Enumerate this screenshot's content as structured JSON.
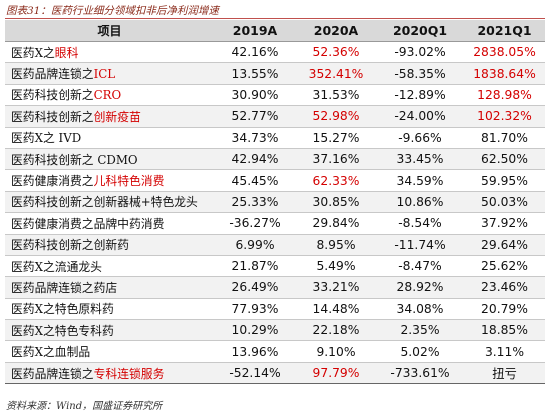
{
  "caption": "图表31：医药行业细分领域扣非后净利润增速",
  "columns": [
    "项目",
    "2019A",
    "2020A",
    "2020Q1",
    "2021Q1"
  ],
  "highlight_color": "#d40000",
  "rows": [
    {
      "prefix": "医药Ⅹ之",
      "suffix": "眼科",
      "suffix_hl": true,
      "v": [
        "42.16%",
        "52.36%",
        "-93.02%",
        "2838.05%"
      ],
      "hl": [
        false,
        true,
        false,
        true
      ]
    },
    {
      "prefix": "医药品牌连锁之",
      "suffix": "ICL",
      "suffix_hl": true,
      "v": [
        "13.55%",
        "352.41%",
        "-58.35%",
        "1838.64%"
      ],
      "hl": [
        false,
        true,
        false,
        true
      ]
    },
    {
      "prefix": "医药科技创新之",
      "suffix": "CRO",
      "suffix_hl": true,
      "v": [
        "30.90%",
        "31.53%",
        "-12.89%",
        "128.98%"
      ],
      "hl": [
        false,
        false,
        false,
        true
      ]
    },
    {
      "prefix": "医药科技创新之",
      "suffix": "创新疫苗",
      "suffix_hl": true,
      "v": [
        "52.77%",
        "52.98%",
        "-24.00%",
        "102.32%"
      ],
      "hl": [
        false,
        true,
        false,
        true
      ]
    },
    {
      "prefix": "医药Ⅹ之 IVD",
      "suffix": "",
      "suffix_hl": false,
      "v": [
        "34.73%",
        "15.27%",
        "-9.66%",
        "81.70%"
      ],
      "hl": [
        false,
        false,
        false,
        false
      ]
    },
    {
      "prefix": "医药科技创新之 CDMO",
      "suffix": "",
      "suffix_hl": false,
      "v": [
        "42.94%",
        "37.16%",
        "33.45%",
        "62.50%"
      ],
      "hl": [
        false,
        false,
        false,
        false
      ]
    },
    {
      "prefix": "医药健康消费之",
      "suffix": "儿科特色消费",
      "suffix_hl": true,
      "v": [
        "45.45%",
        "62.33%",
        "34.59%",
        "59.95%"
      ],
      "hl": [
        false,
        true,
        false,
        false
      ]
    },
    {
      "prefix": "医药科技创新之创新器械+特色龙头",
      "suffix": "",
      "suffix_hl": false,
      "v": [
        "25.33%",
        "30.85%",
        "10.86%",
        "50.03%"
      ],
      "hl": [
        false,
        false,
        false,
        false
      ]
    },
    {
      "prefix": "医药健康消费之品牌中药消费",
      "suffix": "",
      "suffix_hl": false,
      "v": [
        "-36.27%",
        "29.84%",
        "-8.54%",
        "37.92%"
      ],
      "hl": [
        false,
        false,
        false,
        false
      ]
    },
    {
      "prefix": "医药科技创新之创新药",
      "suffix": "",
      "suffix_hl": false,
      "v": [
        "6.99%",
        "8.95%",
        "-11.74%",
        "29.64%"
      ],
      "hl": [
        false,
        false,
        false,
        false
      ]
    },
    {
      "prefix": "医药Ⅹ之流通龙头",
      "suffix": "",
      "suffix_hl": false,
      "v": [
        "21.87%",
        "5.49%",
        "-8.47%",
        "25.62%"
      ],
      "hl": [
        false,
        false,
        false,
        false
      ]
    },
    {
      "prefix": "医药品牌连锁之药店",
      "suffix": "",
      "suffix_hl": false,
      "v": [
        "26.49%",
        "33.21%",
        "28.92%",
        "23.46%"
      ],
      "hl": [
        false,
        false,
        false,
        false
      ]
    },
    {
      "prefix": "医药Ⅹ之特色原料药",
      "suffix": "",
      "suffix_hl": false,
      "v": [
        "77.93%",
        "14.48%",
        "34.08%",
        "20.79%"
      ],
      "hl": [
        false,
        false,
        false,
        false
      ]
    },
    {
      "prefix": "医药Ⅹ之特色专科药",
      "suffix": "",
      "suffix_hl": false,
      "v": [
        "10.29%",
        "22.18%",
        "2.35%",
        "18.85%"
      ],
      "hl": [
        false,
        false,
        false,
        false
      ]
    },
    {
      "prefix": "医药Ⅹ之血制品",
      "suffix": "",
      "suffix_hl": false,
      "v": [
        "13.96%",
        "9.10%",
        "5.02%",
        "3.11%"
      ],
      "hl": [
        false,
        false,
        false,
        false
      ]
    },
    {
      "prefix": "医药品牌连锁之",
      "suffix": "专科连锁服务",
      "suffix_hl": true,
      "v": [
        "-52.14%",
        "97.79%",
        "-733.61%",
        "扭亏"
      ],
      "hl": [
        false,
        true,
        false,
        false
      ]
    }
  ],
  "source": "资料来源：Wind，国盛证券研究所"
}
